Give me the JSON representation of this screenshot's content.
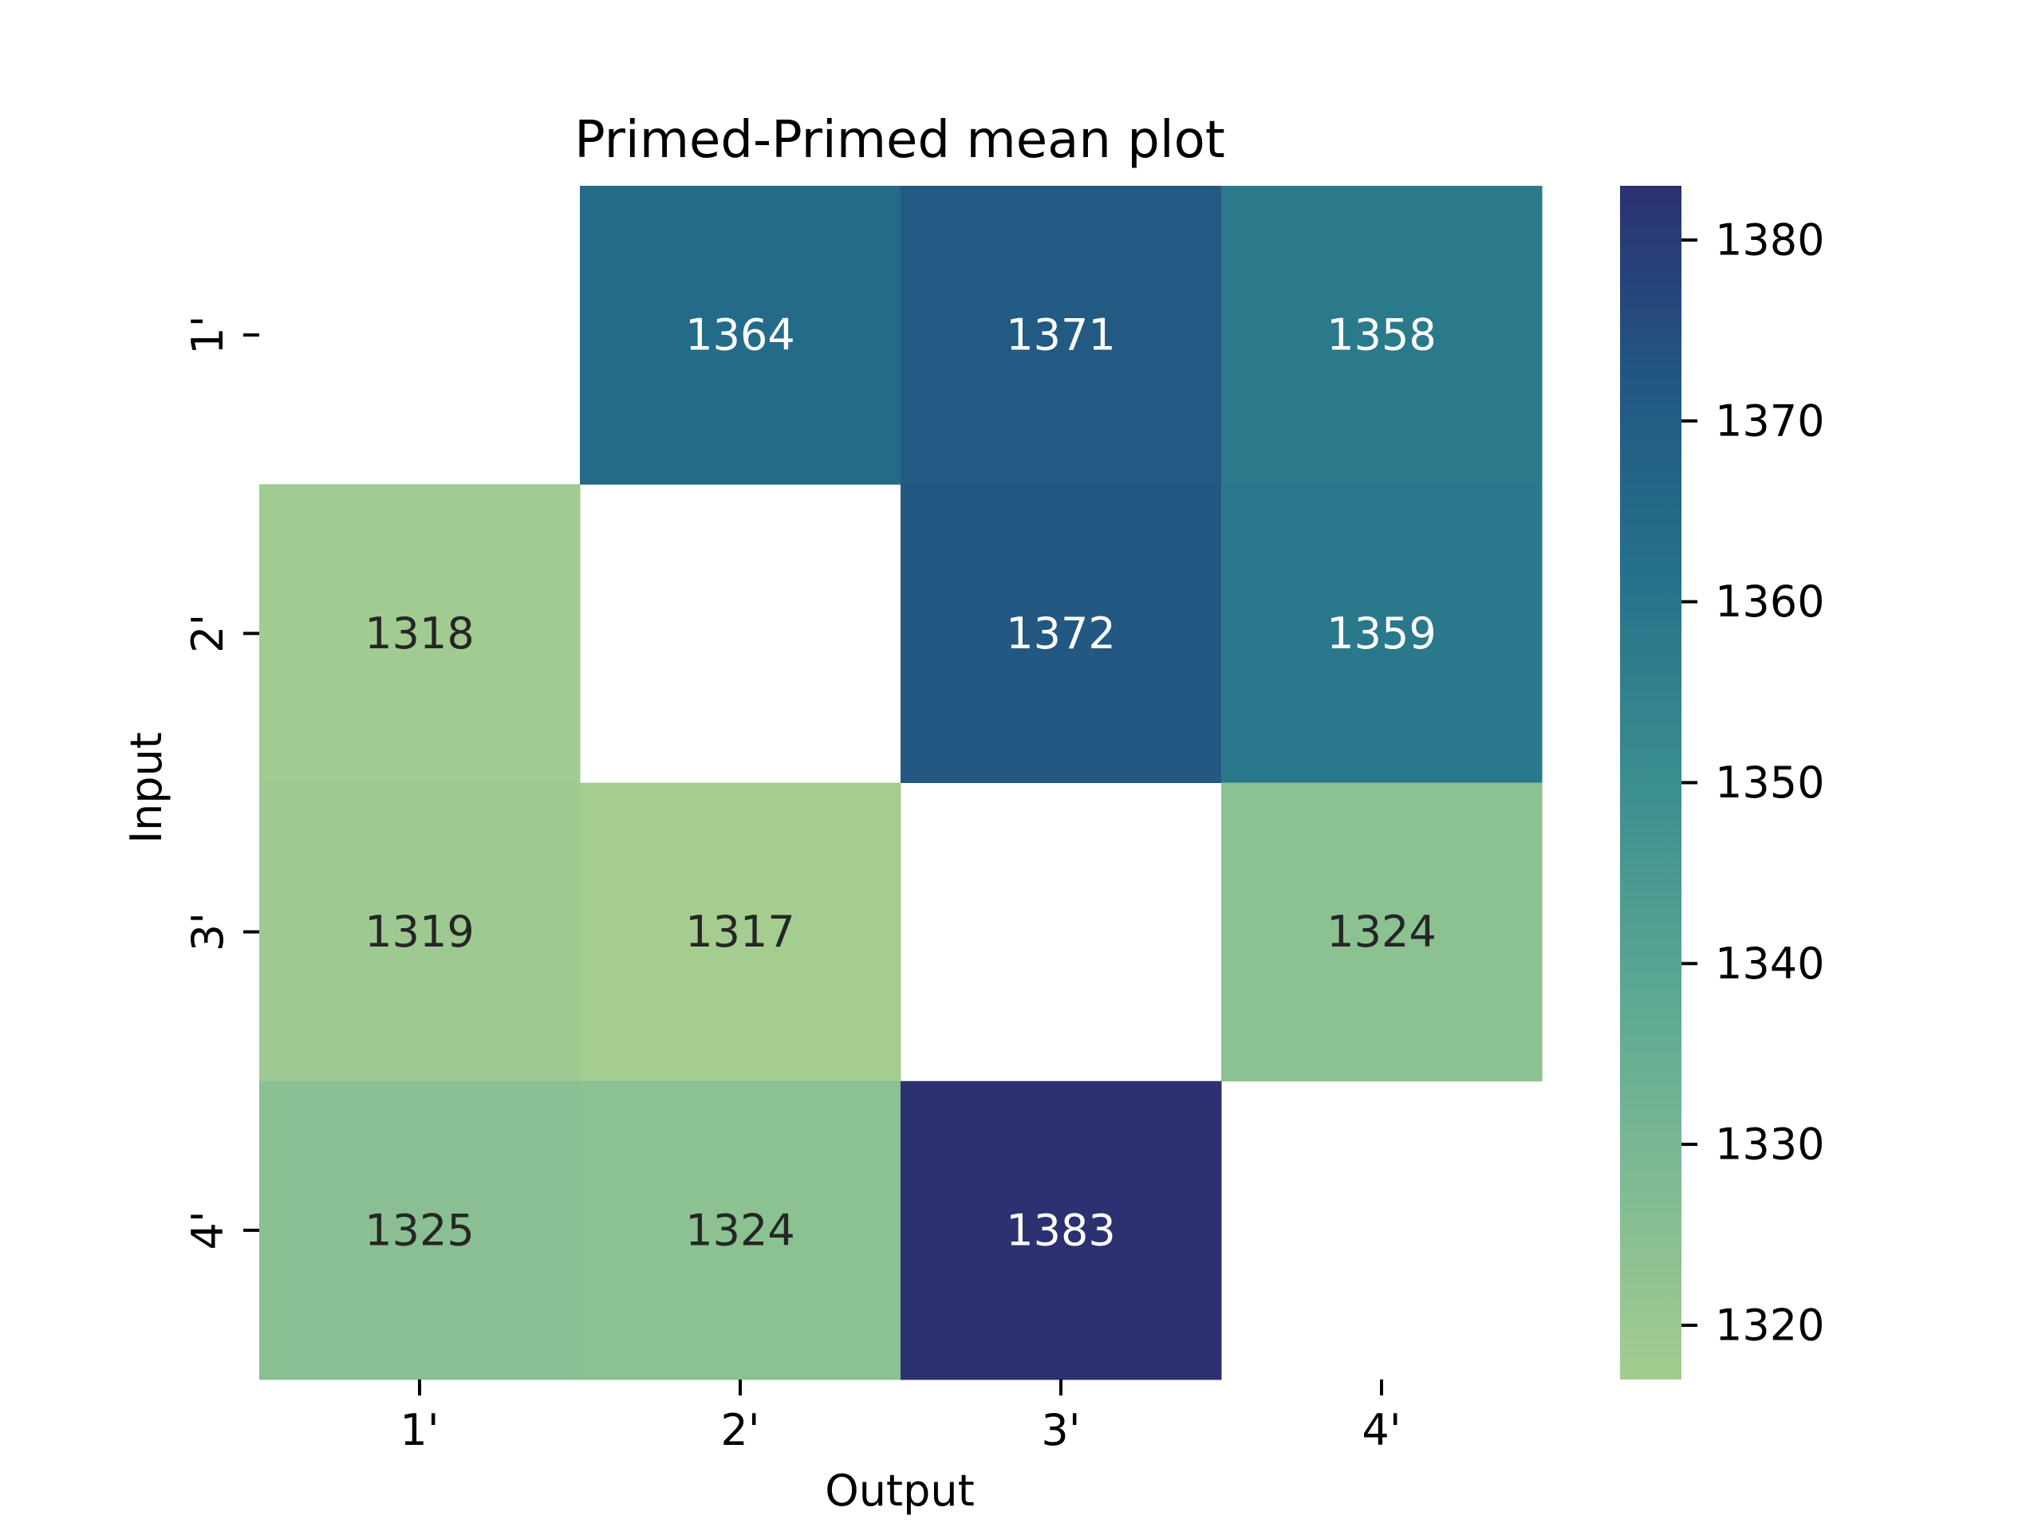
{
  "chart_data": {
    "type": "heatmap",
    "title": "Primed-Primed mean plot",
    "xlabel": "Output",
    "ylabel": "Input",
    "x_categories": [
      "1'",
      "2'",
      "3'",
      "4'"
    ],
    "y_categories": [
      "1'",
      "2'",
      "3'",
      "4'"
    ],
    "values": [
      [
        null,
        1364,
        1371,
        1358
      ],
      [
        1318,
        null,
        1372,
        1359
      ],
      [
        1319,
        1317,
        null,
        1324
      ],
      [
        1325,
        1324,
        1383,
        null
      ]
    ],
    "colorbar": {
      "min": 1317,
      "max": 1383,
      "ticks": [
        1320,
        1330,
        1340,
        1350,
        1360,
        1370,
        1380
      ],
      "colormap": "crest",
      "color_low": "#a5cd90",
      "color_high": "#2c3172"
    },
    "annotation_color_dark_bg": "#ffffff",
    "annotation_color_light_bg": "#262626",
    "missing_color": "#ffffff",
    "grid": false,
    "legend": "colorbar-right"
  }
}
